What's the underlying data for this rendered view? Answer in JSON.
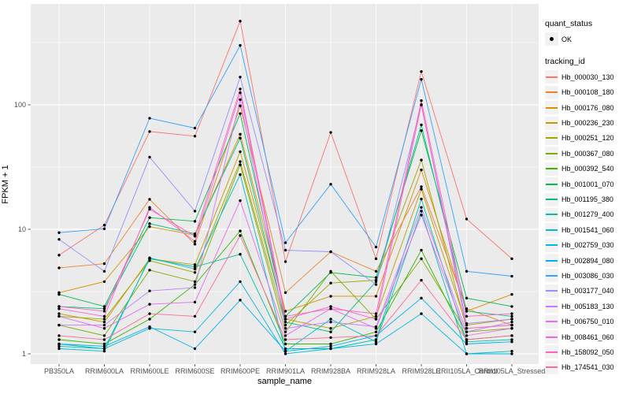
{
  "chart_data": {
    "type": "line",
    "xlabel": "sample_name",
    "ylabel": "FPKM + 1",
    "x_categories": [
      "PB350LA",
      "RRIM600LA",
      "RRIM600LE",
      "RRIM600SE",
      "RRIM600PE",
      "RRIM901LA",
      "RRIM928BA",
      "RRIM928LA",
      "RRIM928LE",
      "RRII105LA_Control",
      "RRII105LA_Stressed"
    ],
    "y_scale": "log10",
    "y_ticks": [
      1,
      10,
      100
    ],
    "y_minor_ticks": [
      3.162,
      31.62,
      316.2
    ],
    "ylim": [
      0.8,
      650
    ],
    "grid": "on",
    "legend_position": "right",
    "point_color": "#000000",
    "panel_background": "#EBEBEB",
    "gridline_color": "#FFFFFF",
    "series": [
      {
        "name": "Hb_000030_130",
        "color": "#F8766D",
        "values": [
          6.2,
          10.8,
          61,
          56,
          470,
          5.5,
          60,
          5.8,
          185,
          12.1,
          5.8
        ]
      },
      {
        "name": "Hb_000108_180",
        "color": "#EA8331",
        "values": [
          4.9,
          5.3,
          17.4,
          7.6,
          98,
          3.1,
          6.6,
          4.6,
          22,
          2.3,
          1.7
        ]
      },
      {
        "name": "Hb_000176_080",
        "color": "#D89000",
        "values": [
          3.1,
          3.8,
          10.5,
          9.0,
          58,
          2.2,
          2.9,
          2.9,
          30,
          2.2,
          3.0
        ]
      },
      {
        "name": "Hb_000236_230",
        "color": "#C09B00",
        "values": [
          2.1,
          1.8,
          5.8,
          5.2,
          42,
          1.9,
          1.6,
          2.0,
          21,
          1.7,
          1.9
        ]
      },
      {
        "name": "Hb_000251_120",
        "color": "#A3A500",
        "values": [
          2.0,
          1.9,
          5.6,
          4.5,
          35,
          1.7,
          3.7,
          3.9,
          36,
          1.6,
          1.7
        ]
      },
      {
        "name": "Hb_000367_080",
        "color": "#7CAE00",
        "values": [
          1.7,
          1.4,
          4.7,
          3.8,
          33,
          1.5,
          4.6,
          1.9,
          5.8,
          1.5,
          1.6
        ]
      },
      {
        "name": "Hb_000392_540",
        "color": "#39B600",
        "values": [
          1.3,
          1.2,
          1.9,
          3.6,
          9.7,
          1.2,
          1.2,
          1.5,
          6.8,
          1.3,
          1.4
        ]
      },
      {
        "name": "Hb_001001_070",
        "color": "#00BB4E",
        "values": [
          3.0,
          2.4,
          12.4,
          11.6,
          85,
          2.0,
          4.5,
          4.1,
          62,
          2.8,
          2.4
        ]
      },
      {
        "name": "Hb_001195_380",
        "color": "#00BF7D",
        "values": [
          2.4,
          2.3,
          11.1,
          9.2,
          54,
          1.8,
          1.5,
          3.8,
          69,
          2.2,
          2.0
        ]
      },
      {
        "name": "Hb_001279_400",
        "color": "#00C1A3",
        "values": [
          1.2,
          1.1,
          5.8,
          5.0,
          6.3,
          1.1,
          1.1,
          1.3,
          17.5,
          1.25,
          1.3
        ]
      },
      {
        "name": "Hb_001541_060",
        "color": "#00BFC4",
        "values": [
          1.1,
          1.05,
          5.9,
          4.8,
          27.5,
          1.05,
          1.9,
          1.25,
          14,
          1.0,
          1.05
        ]
      },
      {
        "name": "Hb_002759_030",
        "color": "#00BAE0",
        "values": [
          1.15,
          1.1,
          1.6,
          1.5,
          3.8,
          1.0,
          1.1,
          1.2,
          2.1,
          1.0,
          1.0
        ]
      },
      {
        "name": "Hb_002894_080",
        "color": "#00B0F6",
        "values": [
          1.2,
          1.15,
          1.65,
          1.1,
          2.7,
          1.05,
          1.15,
          1.4,
          2.8,
          1.2,
          1.25
        ]
      },
      {
        "name": "Hb_003086_030",
        "color": "#35A2FF",
        "values": [
          9.4,
          10.1,
          78,
          65,
          300,
          7.8,
          23,
          7.2,
          160,
          4.6,
          4.2
        ]
      },
      {
        "name": "Hb_003177_040",
        "color": "#9590FF",
        "values": [
          8.3,
          4.6,
          38,
          14,
          167,
          6.8,
          6.6,
          3.6,
          100,
          1.75,
          1.9
        ]
      },
      {
        "name": "Hb_005183_130",
        "color": "#C77CFF",
        "values": [
          1.7,
          1.7,
          3.2,
          3.4,
          110,
          1.6,
          1.8,
          1.65,
          15,
          1.5,
          1.8
        ]
      },
      {
        "name": "Hb_006750_010",
        "color": "#E76BF3",
        "values": [
          2.0,
          1.6,
          2.5,
          2.6,
          17,
          1.4,
          2.3,
          1.6,
          13,
          1.4,
          1.6
        ]
      },
      {
        "name": "Hb_008461_060",
        "color": "#FA62DB",
        "values": [
          2.3,
          2.0,
          15,
          8.0,
          125,
          1.9,
          2.4,
          1.9,
          100,
          1.6,
          1.7
        ]
      },
      {
        "name": "Hb_158092_050",
        "color": "#FF62BC",
        "values": [
          2.4,
          2.2,
          14.5,
          8.8,
          134,
          2.0,
          2.3,
          2.1,
          108,
          2.0,
          2.1
        ]
      },
      {
        "name": "Hb_174541_030",
        "color": "#FF6A98",
        "values": [
          1.4,
          1.3,
          2.1,
          2.0,
          8.9,
          1.3,
          1.35,
          1.4,
          3.9,
          1.3,
          1.4
        ]
      }
    ]
  },
  "legend": {
    "quant_status_title": "quant_status",
    "quant_status_items": [
      {
        "label": "OK"
      }
    ],
    "tracking_title": "tracking_id",
    "key_background": "#F2F2F2"
  },
  "axes": {
    "x_title": "sample_name",
    "y_title": "FPKM + 1",
    "tick_color": "#333333",
    "tick_label_color": "#4d4d4d"
  }
}
